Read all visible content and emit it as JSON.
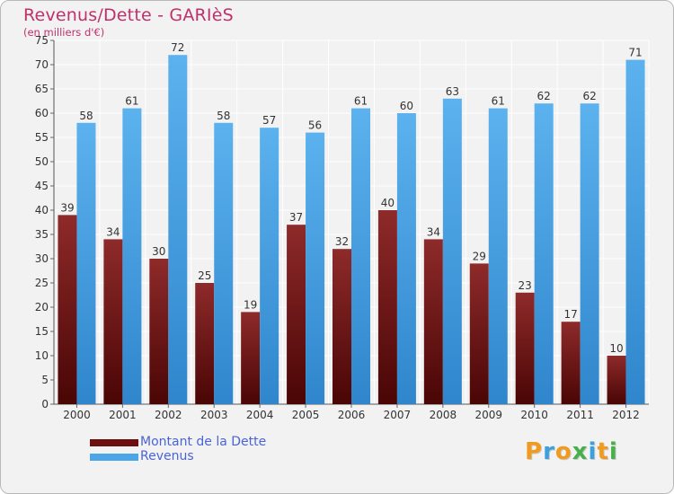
{
  "header": {
    "title": "Revenus/Dette - GARIèS",
    "subtitle": "(en milliers d'€)"
  },
  "chart_data": {
    "type": "bar",
    "categories": [
      "2000",
      "2001",
      "2002",
      "2003",
      "2004",
      "2005",
      "2006",
      "2007",
      "2008",
      "2009",
      "2010",
      "2011",
      "2012"
    ],
    "series": [
      {
        "name": "Montant de la Dette",
        "values": [
          39,
          34,
          30,
          25,
          19,
          37,
          32,
          40,
          34,
          29,
          23,
          17,
          10
        ],
        "color": "#7a1c1c"
      },
      {
        "name": "Revenus",
        "values": [
          58,
          61,
          72,
          58,
          57,
          56,
          61,
          60,
          63,
          61,
          62,
          62,
          71
        ],
        "color": "#4aa6e6"
      }
    ],
    "ylim": [
      0,
      75
    ],
    "yticks": [
      0,
      5,
      10,
      15,
      20,
      25,
      30,
      35,
      40,
      45,
      50,
      55,
      60,
      65,
      70,
      75
    ],
    "grid": true,
    "legend_position": "bottom-left"
  },
  "legend": {
    "debt_label": "Montant de la Dette",
    "revenue_label": "Revenus",
    "debt_color": "#6b0f0f",
    "revenue_color": "#4aa6e6"
  },
  "logo": {
    "letters": [
      "P",
      "r",
      "o",
      "x",
      "i",
      "t",
      "i"
    ],
    "colors": [
      "#f09a1e",
      "#3aa0e0",
      "#f09a1e",
      "#46b04a",
      "#3aa0e0",
      "#f09a1e",
      "#46b04a"
    ]
  }
}
